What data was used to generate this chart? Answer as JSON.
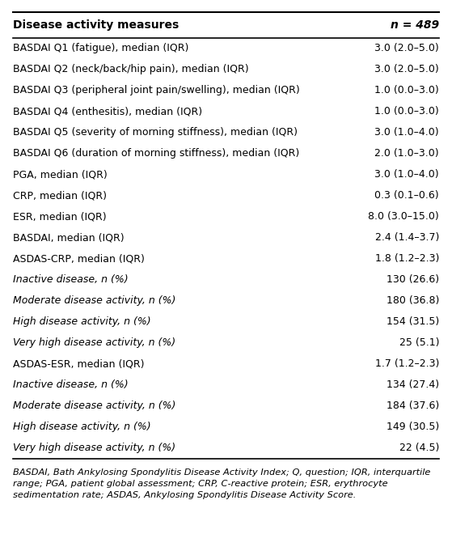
{
  "header_left": "Disease activity measures",
  "header_right": "n = 489",
  "rows": [
    [
      "BASDAI Q1 (fatigue), median (IQR)",
      "3.0 (2.0–5.0)"
    ],
    [
      "BASDAI Q2 (neck/back/hip pain), median (IQR)",
      "3.0 (2.0–5.0)"
    ],
    [
      "BASDAI Q3 (peripheral joint pain/swelling), median (IQR)",
      "1.0 (0.0–3.0)"
    ],
    [
      "BASDAI Q4 (enthesitis), median (IQR)",
      "1.0 (0.0–3.0)"
    ],
    [
      "BASDAI Q5 (severity of morning stiffness), median (IQR)",
      "3.0 (1.0–4.0)"
    ],
    [
      "BASDAI Q6 (duration of morning stiffness), median (IQR)",
      "2.0 (1.0–3.0)"
    ],
    [
      "PGA, median (IQR)",
      "3.0 (1.0–4.0)"
    ],
    [
      "CRP, median (IQR)",
      "0.3 (0.1–0.6)"
    ],
    [
      "ESR, median (IQR)",
      "8.0 (3.0–15.0)"
    ],
    [
      "BASDAI, median (IQR)",
      "2.4 (1.4–3.7)"
    ],
    [
      "ASDAS-CRP, median (IQR)",
      "1.8 (1.2–2.3)"
    ],
    [
      "Inactive disease, n (%)",
      "130 (26.6)"
    ],
    [
      "Moderate disease activity, n (%)",
      "180 (36.8)"
    ],
    [
      "High disease activity, n (%)",
      "154 (31.5)"
    ],
    [
      "Very high disease activity, n (%)",
      "25 (5.1)"
    ],
    [
      "ASDAS-ESR, median (IQR)",
      "1.7 (1.2–2.3)"
    ],
    [
      "Inactive disease, n (%)",
      "134 (27.4)"
    ],
    [
      "Moderate disease activity, n (%)",
      "184 (37.6)"
    ],
    [
      "High disease activity, n (%)",
      "149 (30.5)"
    ],
    [
      "Very high disease activity, n (%)",
      "22 (4.5)"
    ]
  ],
  "footnote_lines": [
    "BASDAI, Bath Ankylosing Spondylitis Disease Activity Index; Q, question; IQR, interquartile",
    "range; PGA, patient global assessment; CRP, C-reactive protein; ESR, erythrocyte",
    "sedimentation rate; ASDAS, Ankylosing Spondylitis Disease Activity Score."
  ],
  "italic_rows": [
    11,
    12,
    13,
    14,
    16,
    17,
    18,
    19
  ],
  "background_color": "#ffffff",
  "text_color": "#000000",
  "font_size": 9.0,
  "header_font_size": 10.0,
  "footnote_font_size": 8.2
}
